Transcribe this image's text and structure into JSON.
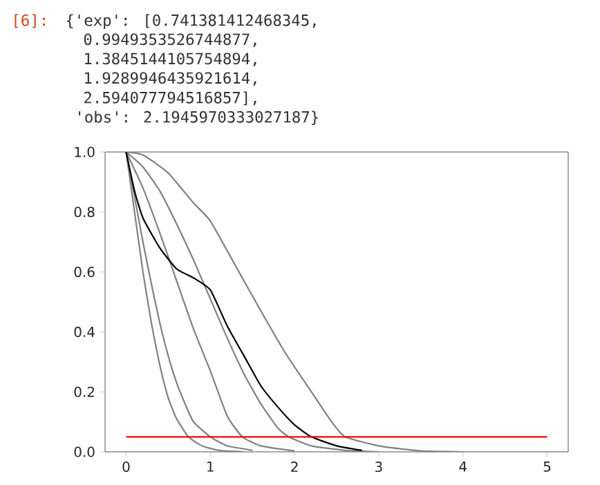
{
  "chart_data": {
    "type": "line",
    "annotations": [
      "[6]:",
      "{'exp': [0.741381412468345,",
      "0.9949353526744877,",
      "1.3845144105754894,",
      "1.9289946435921614,",
      "2.594077794516857],",
      "'obs': 2.1945970333027187}"
    ],
    "xlim": [
      -0.25,
      5.25
    ],
    "ylim": [
      0,
      1
    ],
    "xticks": [
      0,
      1,
      2,
      3,
      4,
      5
    ],
    "yticks": [
      {
        "value": 0,
        "label": "0.0"
      },
      {
        "value": 0.2,
        "label": "0.2"
      },
      {
        "value": 0.4,
        "label": "0.4"
      },
      {
        "value": 0.6,
        "label": "0.6"
      },
      {
        "value": 0.8,
        "label": "0.8"
      },
      {
        "value": 1,
        "label": "1.0"
      }
    ],
    "line_style": "solid",
    "marker": "none",
    "series": [
      {
        "color": "#808080",
        "x": [
          0,
          0.1,
          0.2,
          0.3,
          0.4,
          0.5,
          0.6,
          0.74,
          0.9,
          1.1,
          1.4
        ],
        "values": [
          1,
          0.8,
          0.6,
          0.43,
          0.29,
          0.18,
          0.11,
          0.05,
          0.02,
          0.005,
          0
        ]
      },
      {
        "color": "#808080",
        "x": [
          0,
          0.1,
          0.2,
          0.3,
          0.4,
          0.5,
          0.6,
          0.7,
          0.8,
          1.0,
          1.2,
          1.5
        ],
        "values": [
          1,
          0.85,
          0.7,
          0.56,
          0.43,
          0.32,
          0.23,
          0.16,
          0.1,
          0.05,
          0.02,
          0.005
        ]
      },
      {
        "color": "#808080",
        "x": [
          0,
          0.2,
          0.4,
          0.6,
          0.8,
          1.0,
          1.2,
          1.38,
          1.6,
          2.0
        ],
        "values": [
          1,
          0.88,
          0.73,
          0.57,
          0.41,
          0.27,
          0.12,
          0.05,
          0.02,
          0.003
        ]
      },
      {
        "color": "#808080",
        "x": [
          0,
          0.2,
          0.4,
          0.6,
          0.8,
          1.0,
          1.2,
          1.4,
          1.6,
          1.8,
          1.93,
          2.2,
          2.6,
          3.0
        ],
        "values": [
          1,
          0.95,
          0.87,
          0.76,
          0.64,
          0.51,
          0.38,
          0.26,
          0.16,
          0.08,
          0.05,
          0.02,
          0.005,
          0
        ]
      },
      {
        "color": "#808080",
        "x": [
          0,
          0.2,
          0.5,
          0.8,
          1.0,
          1.34,
          1.6,
          1.89,
          2.2,
          2.44,
          2.6,
          3.0,
          3.5,
          4.0
        ],
        "values": [
          1,
          0.99,
          0.93,
          0.83,
          0.77,
          0.6,
          0.47,
          0.33,
          0.2,
          0.1,
          0.05,
          0.02,
          0.003,
          0
        ]
      },
      {
        "color": "#000000",
        "x": [
          0,
          0.1,
          0.2,
          0.4,
          0.6,
          0.8,
          1.0,
          1.2,
          1.4,
          1.6,
          1.8,
          2.0,
          2.2,
          2.5,
          2.8
        ],
        "values": [
          1,
          0.87,
          0.78,
          0.68,
          0.61,
          0.58,
          0.54,
          0.42,
          0.32,
          0.22,
          0.15,
          0.09,
          0.05,
          0.02,
          0.005
        ]
      },
      {
        "color": "#ff0000",
        "x": [
          0,
          5
        ],
        "values": [
          0.05,
          0.05
        ]
      }
    ]
  }
}
